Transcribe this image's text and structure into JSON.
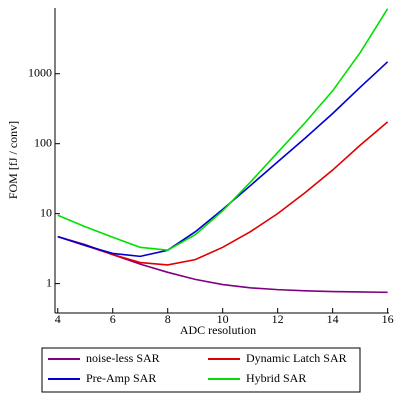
{
  "chart_data": {
    "type": "line",
    "x_label": "ADC resolution",
    "y_label": "FOM [fJ / conv]",
    "x": [
      4,
      5,
      6,
      7,
      8,
      9,
      10,
      11,
      12,
      13,
      14,
      15,
      16
    ],
    "series": [
      {
        "name": "noise-less SAR",
        "color": "#800080",
        "values": [
          4.7,
          3.6,
          2.6,
          1.9,
          1.45,
          1.15,
          0.97,
          0.87,
          0.82,
          0.79,
          0.77,
          0.76,
          0.75
        ]
      },
      {
        "name": "Dynamic Latch SAR",
        "color": "#e00000",
        "values": [
          4.7,
          3.5,
          2.6,
          2.0,
          1.85,
          2.2,
          3.3,
          5.5,
          10,
          20,
          42,
          95,
          205
        ]
      },
      {
        "name": "Pre-Amp SAR",
        "color": "#0000d0",
        "values": [
          4.7,
          3.5,
          2.7,
          2.45,
          3.0,
          5.5,
          11.5,
          25,
          55,
          120,
          270,
          640,
          1480
        ]
      },
      {
        "name": "Hybrid SAR",
        "color": "#00e000",
        "values": [
          9.5,
          6.5,
          4.6,
          3.3,
          3.0,
          5.0,
          11,
          28,
          75,
          200,
          570,
          2000,
          8500
        ]
      }
    ],
    "xlim": [
      3.9,
      16.05
    ],
    "xticks": [
      4,
      6,
      8,
      10,
      12,
      14,
      16
    ],
    "ylim": [
      0.38,
      8700
    ],
    "yticks": [
      1,
      10,
      100,
      1000
    ],
    "y_scale": "log",
    "grid": false,
    "legend": "bottom"
  }
}
